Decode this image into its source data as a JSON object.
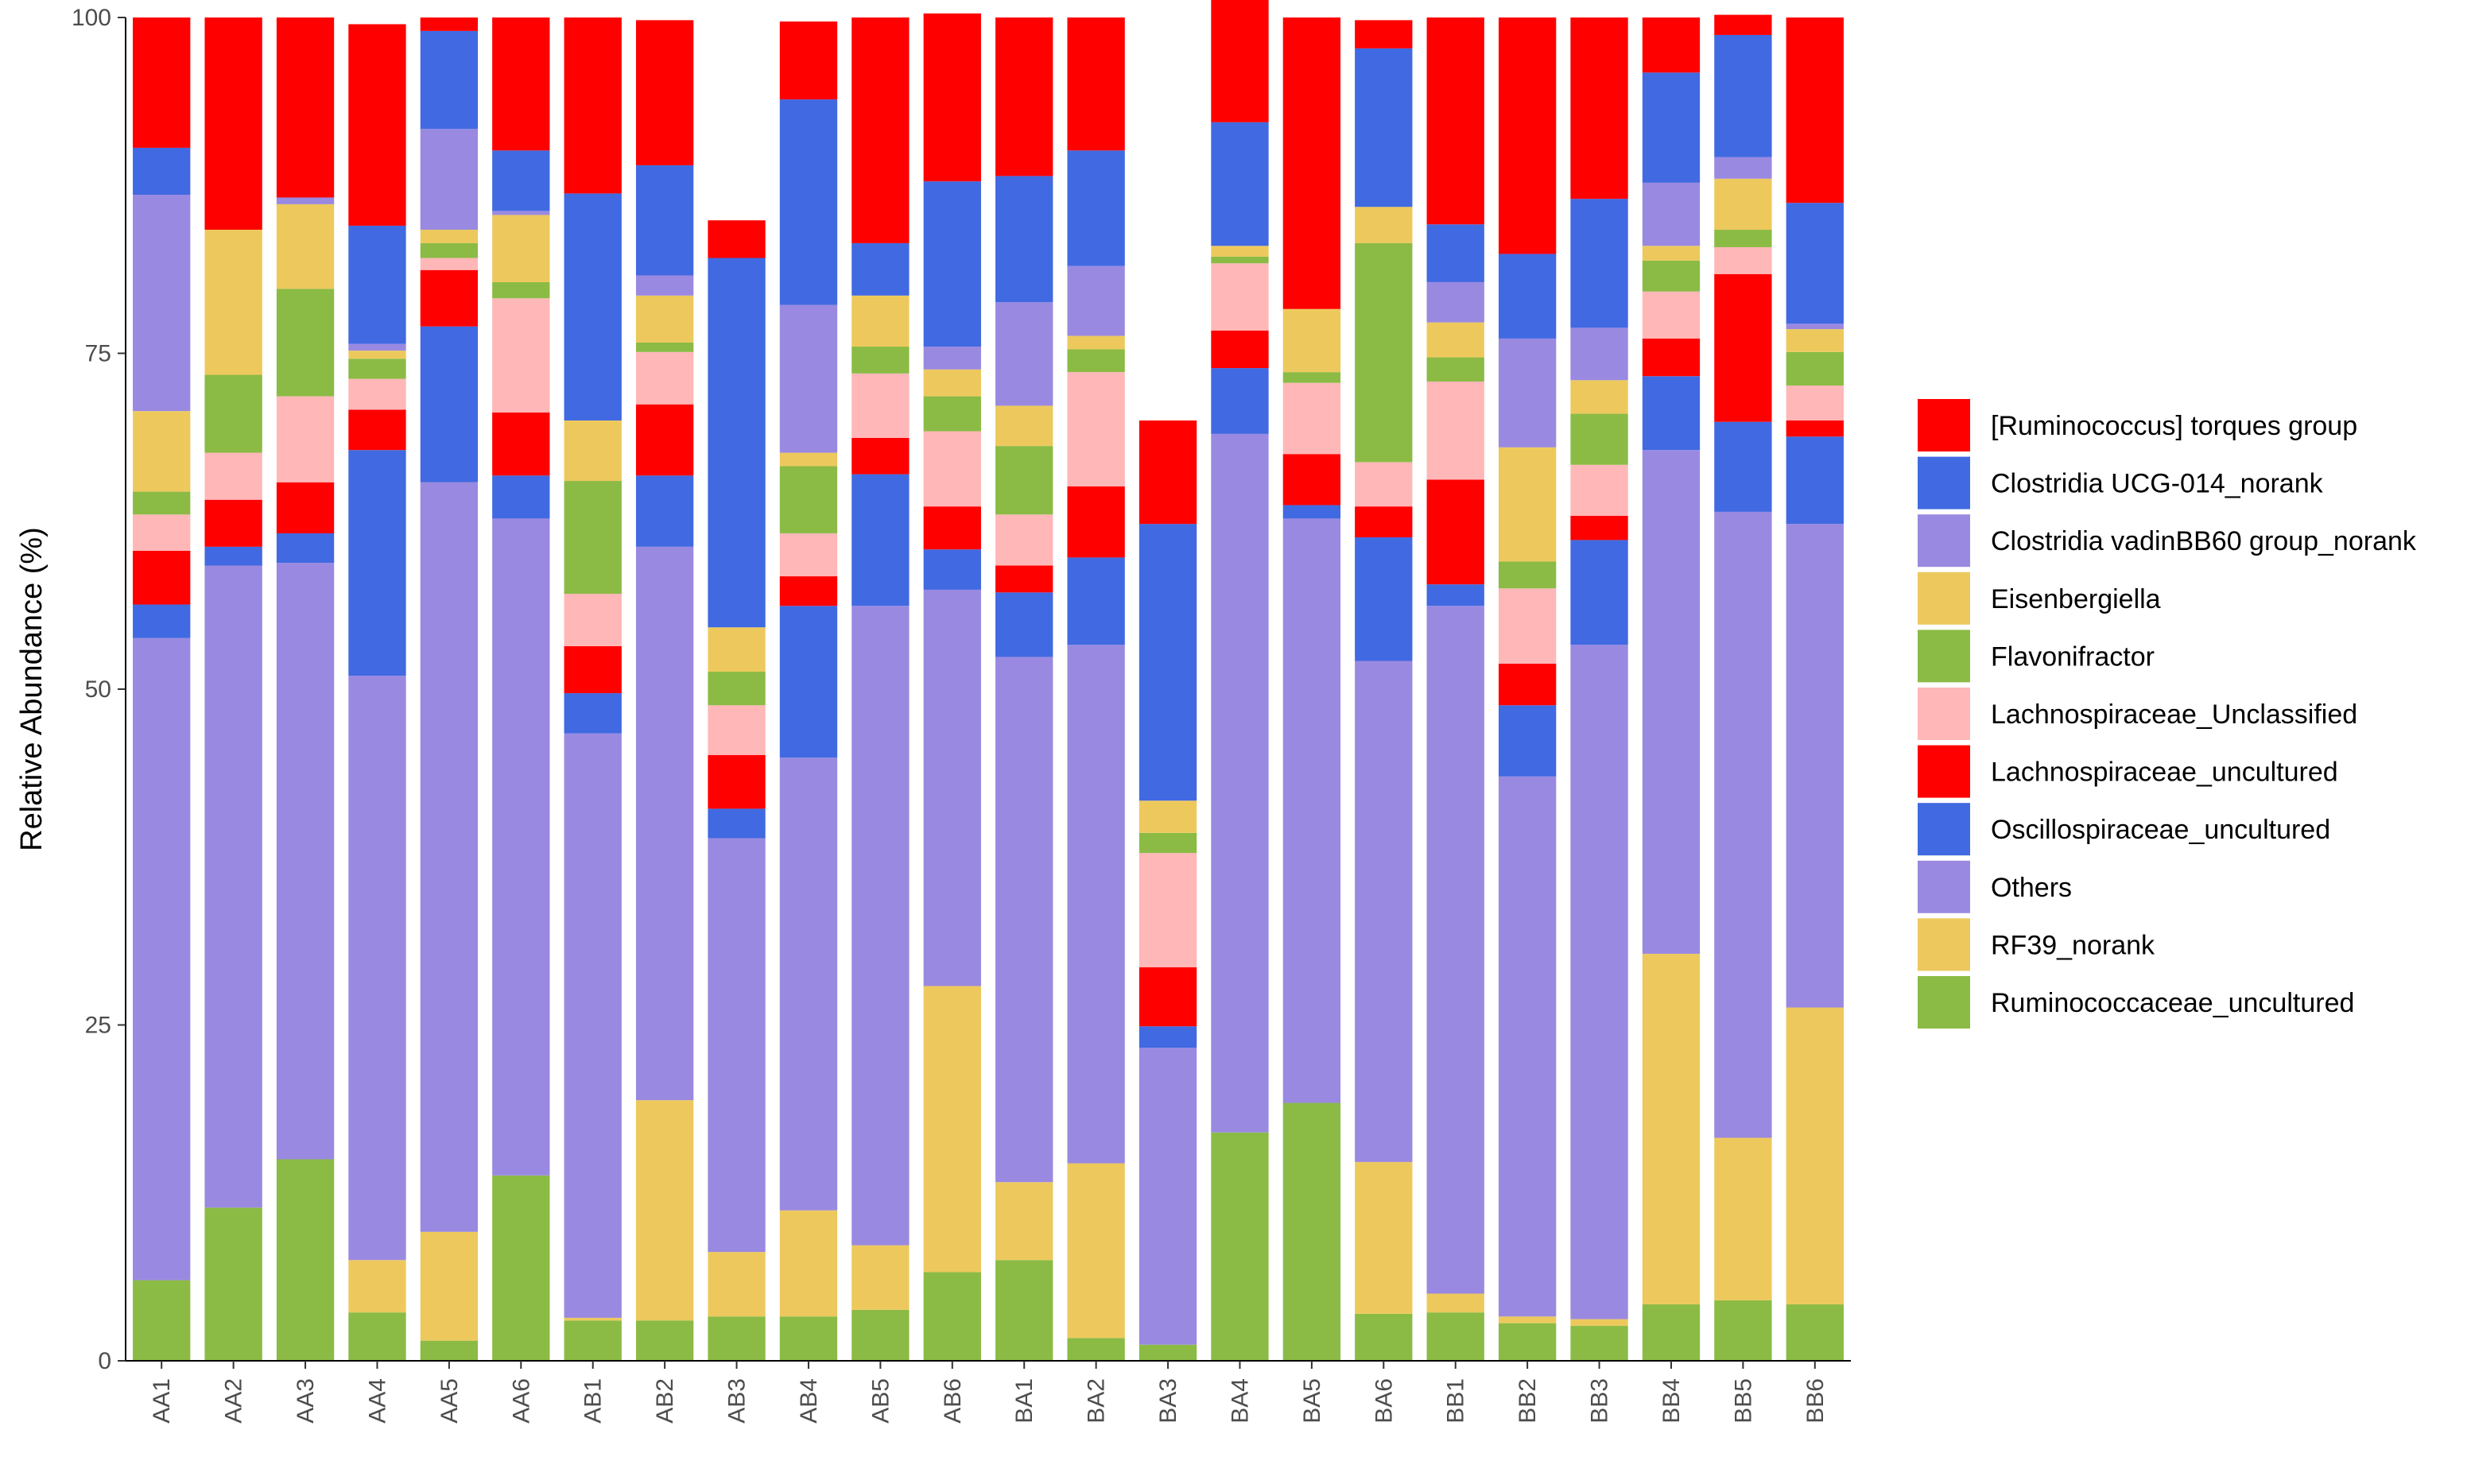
{
  "chart_data": {
    "type": "bar",
    "stacked": true,
    "ylabel": "Relative Abundance (%)",
    "xlabel": "",
    "ylim": [
      0,
      100
    ],
    "yticks": [
      0,
      25,
      50,
      75,
      100
    ],
    "grid": false,
    "legend_position": "right",
    "categories": [
      "AA1",
      "AA2",
      "AA3",
      "AA4",
      "AA5",
      "AA6",
      "AB1",
      "AB2",
      "AB3",
      "AB4",
      "AB5",
      "AB6",
      "BA1",
      "BA2",
      "BA3",
      "BA4",
      "BA5",
      "BA6",
      "BB1",
      "BB2",
      "BB3",
      "BB4",
      "BB5",
      "BB6"
    ],
    "series": [
      {
        "name": "Ruminococcaceae_uncultured",
        "color": "#8BBB45",
        "values": [
          6.0,
          11.4,
          15.0,
          3.6,
          1.5,
          13.8,
          3.0,
          3.0,
          3.3,
          3.3,
          3.8,
          6.6,
          7.5,
          1.7,
          1.2,
          17.0,
          19.2,
          3.5,
          3.6,
          2.8,
          2.6,
          4.2,
          4.5,
          4.2
        ]
      },
      {
        "name": "RF39_norank",
        "color": "#EDC95D",
        "values": [
          0,
          0,
          0,
          3.9,
          8.1,
          0,
          0.2,
          16.4,
          4.8,
          7.9,
          4.8,
          21.3,
          5.8,
          13.0,
          0,
          0,
          0,
          11.3,
          1.4,
          0.5,
          0.5,
          26.1,
          12.1,
          22.1
        ]
      },
      {
        "name": "Others",
        "color": "#9A89E0",
        "values": [
          47.8,
          47.8,
          44.4,
          43.5,
          55.8,
          48.9,
          43.5,
          41.2,
          30.8,
          33.7,
          47.6,
          29.5,
          39.1,
          38.6,
          22.1,
          52.0,
          43.5,
          37.3,
          51.2,
          40.2,
          50.2,
          37.5,
          46.6,
          36.0
        ]
      },
      {
        "name": "Oscillospiraceae_uncultured",
        "color": "#4169E1",
        "values": [
          2.5,
          1.4,
          2.2,
          16.8,
          11.6,
          3.2,
          3.0,
          5.3,
          2.2,
          11.3,
          9.8,
          3.0,
          4.8,
          6.5,
          1.6,
          4.9,
          1.0,
          9.2,
          1.6,
          5.3,
          7.8,
          5.5,
          6.7,
          6.5
        ]
      },
      {
        "name": "Lachnospiraceae_uncultured",
        "color": "#FF0000",
        "values": [
          4.0,
          3.5,
          3.8,
          3.0,
          4.2,
          4.7,
          3.5,
          5.3,
          4.0,
          2.2,
          2.7,
          3.2,
          2.0,
          5.3,
          4.4,
          2.8,
          3.8,
          2.3,
          7.8,
          3.1,
          1.8,
          2.8,
          11.0,
          1.2
        ]
      },
      {
        "name": "Lachnospiraceae_Unclassified",
        "color": "#FFB7B8",
        "values": [
          2.7,
          3.5,
          6.4,
          2.3,
          0.9,
          8.5,
          3.9,
          3.9,
          3.7,
          3.2,
          4.8,
          5.6,
          3.8,
          8.5,
          8.5,
          5.0,
          5.3,
          3.3,
          7.3,
          5.6,
          3.8,
          3.5,
          2.0,
          2.6
        ]
      },
      {
        "name": "Flavonifractor",
        "color": "#8BBB45",
        "values": [
          1.7,
          5.8,
          8.0,
          1.5,
          1.1,
          1.2,
          8.4,
          0.7,
          2.5,
          5.0,
          2.0,
          2.6,
          5.1,
          1.7,
          1.5,
          0.5,
          0.8,
          16.3,
          1.8,
          2.0,
          3.8,
          2.3,
          1.3,
          2.5
        ]
      },
      {
        "name": "Eisenbergiella",
        "color": "#EDC95D",
        "values": [
          6.0,
          10.8,
          6.3,
          0.6,
          1.0,
          5.0,
          4.5,
          3.5,
          3.3,
          1.0,
          3.8,
          2.0,
          3.0,
          1.0,
          2.4,
          0.8,
          4.7,
          2.7,
          2.6,
          8.5,
          2.5,
          1.1,
          3.8,
          1.7
        ]
      },
      {
        "name": "Clostridia vadinBB60 group_norank",
        "color": "#9A89E0",
        "values": [
          16.1,
          0,
          0.5,
          0.5,
          7.5,
          0.3,
          0,
          1.5,
          0,
          11.0,
          0,
          1.7,
          7.7,
          5.2,
          0,
          0,
          0,
          0,
          3.0,
          8.1,
          3.9,
          4.7,
          1.6,
          0.4
        ]
      },
      {
        "name": "Clostridia UCG-014_norank",
        "color": "#4169E1",
        "values": [
          3.5,
          0,
          0,
          8.8,
          7.3,
          4.5,
          16.9,
          8.2,
          27.5,
          15.3,
          3.9,
          12.3,
          9.4,
          8.6,
          20.6,
          9.2,
          0,
          11.8,
          4.3,
          6.3,
          9.6,
          8.2,
          9.1,
          9.0
        ]
      },
      {
        "name": "[Ruminococcus] torques group",
        "color": "#FF0000",
        "values": [
          9.7,
          15.8,
          13.4,
          15.0,
          1.0,
          9.9,
          13.1,
          10.8,
          2.8,
          5.8,
          16.8,
          12.5,
          11.8,
          9.9,
          7.7,
          17.2,
          21.7,
          2.1,
          15.4,
          17.6,
          13.5,
          4.1,
          1.5,
          13.8
        ]
      }
    ],
    "legend_order": [
      "[Ruminococcus] torques group",
      "Clostridia UCG-014_norank",
      "Clostridia vadinBB60 group_norank",
      "Eisenbergiella",
      "Flavonifractor",
      "Lachnospiraceae_Unclassified",
      "Lachnospiraceae_uncultured",
      "Oscillospiraceae_uncultured",
      "Others",
      "RF39_norank",
      "Ruminococcaceae_uncultured"
    ]
  }
}
